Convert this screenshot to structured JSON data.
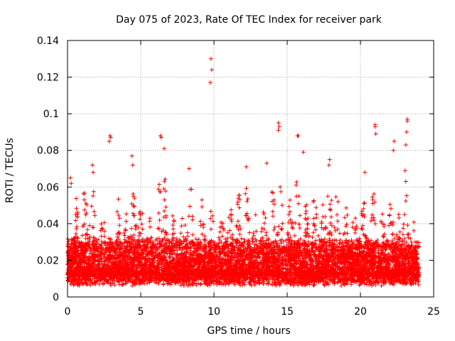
{
  "chart_data": {
    "type": "scatter",
    "title": "Day 075 of 2023, Rate Of TEC Index for receiver park",
    "xlabel": "GPS time / hours",
    "ylabel": "ROTI / TECUs",
    "xlim": [
      0,
      25
    ],
    "ylim": [
      0,
      0.14
    ],
    "x_ticks": [
      0,
      5,
      10,
      15,
      20,
      25
    ],
    "x_tick_labels": [
      "0",
      "5",
      "10",
      "15",
      "20",
      "25"
    ],
    "y_ticks": [
      0,
      0.02,
      0.04,
      0.06,
      0.08,
      0.1,
      0.12,
      0.14
    ],
    "y_tick_labels": [
      "0",
      "0.02",
      "0.04",
      "0.06",
      "0.08",
      "0.1",
      "0.12",
      "0.14"
    ],
    "grid": true,
    "marker": "+",
    "marker_color": "#ff0000",
    "series": [
      {
        "name": "ROTI",
        "x_range": [
          0,
          24
        ],
        "typical_band": [
          0.008,
          0.03
        ],
        "outliers": [
          {
            "x": 0.2,
            "y": 0.065
          },
          {
            "x": 0.25,
            "y": 0.062
          },
          {
            "x": 1.7,
            "y": 0.072
          },
          {
            "x": 1.75,
            "y": 0.068
          },
          {
            "x": 2.9,
            "y": 0.088
          },
          {
            "x": 2.95,
            "y": 0.087
          },
          {
            "x": 2.85,
            "y": 0.085
          },
          {
            "x": 4.4,
            "y": 0.077
          },
          {
            "x": 4.45,
            "y": 0.072
          },
          {
            "x": 6.35,
            "y": 0.088
          },
          {
            "x": 6.4,
            "y": 0.087
          },
          {
            "x": 6.6,
            "y": 0.081
          },
          {
            "x": 8.3,
            "y": 0.07
          },
          {
            "x": 9.8,
            "y": 0.13
          },
          {
            "x": 9.85,
            "y": 0.124
          },
          {
            "x": 9.75,
            "y": 0.117
          },
          {
            "x": 12.2,
            "y": 0.071
          },
          {
            "x": 13.6,
            "y": 0.073
          },
          {
            "x": 14.4,
            "y": 0.095
          },
          {
            "x": 14.45,
            "y": 0.093
          },
          {
            "x": 14.4,
            "y": 0.091
          },
          {
            "x": 15.7,
            "y": 0.088
          },
          {
            "x": 15.75,
            "y": 0.088
          },
          {
            "x": 16.1,
            "y": 0.079
          },
          {
            "x": 17.9,
            "y": 0.075
          },
          {
            "x": 17.85,
            "y": 0.072
          },
          {
            "x": 20.3,
            "y": 0.068
          },
          {
            "x": 21.0,
            "y": 0.094
          },
          {
            "x": 21.0,
            "y": 0.093
          },
          {
            "x": 21.05,
            "y": 0.089
          },
          {
            "x": 22.3,
            "y": 0.085
          },
          {
            "x": 22.25,
            "y": 0.08
          },
          {
            "x": 23.2,
            "y": 0.097
          },
          {
            "x": 23.2,
            "y": 0.096
          },
          {
            "x": 23.15,
            "y": 0.09
          },
          {
            "x": 23.1,
            "y": 0.083
          },
          {
            "x": 23.05,
            "y": 0.069
          },
          {
            "x": 23.1,
            "y": 0.063
          }
        ],
        "activity_peaks": [
          {
            "x": 0.6,
            "y": 0.054
          },
          {
            "x": 1.2,
            "y": 0.062
          },
          {
            "x": 1.7,
            "y": 0.066
          },
          {
            "x": 2.4,
            "y": 0.049
          },
          {
            "x": 3.4,
            "y": 0.058
          },
          {
            "x": 4.0,
            "y": 0.047
          },
          {
            "x": 4.5,
            "y": 0.066
          },
          {
            "x": 5.0,
            "y": 0.055
          },
          {
            "x": 5.6,
            "y": 0.046
          },
          {
            "x": 6.3,
            "y": 0.066
          },
          {
            "x": 6.6,
            "y": 0.07
          },
          {
            "x": 7.2,
            "y": 0.047
          },
          {
            "x": 7.9,
            "y": 0.05
          },
          {
            "x": 8.4,
            "y": 0.064
          },
          {
            "x": 9.2,
            "y": 0.054
          },
          {
            "x": 9.9,
            "y": 0.056
          },
          {
            "x": 10.5,
            "y": 0.058
          },
          {
            "x": 11.1,
            "y": 0.052
          },
          {
            "x": 11.7,
            "y": 0.058
          },
          {
            "x": 12.2,
            "y": 0.066
          },
          {
            "x": 12.8,
            "y": 0.047
          },
          {
            "x": 13.4,
            "y": 0.052
          },
          {
            "x": 14.0,
            "y": 0.061
          },
          {
            "x": 14.5,
            "y": 0.069
          },
          {
            "x": 15.2,
            "y": 0.06
          },
          {
            "x": 15.7,
            "y": 0.075
          },
          {
            "x": 16.3,
            "y": 0.054
          },
          {
            "x": 16.9,
            "y": 0.062
          },
          {
            "x": 17.5,
            "y": 0.055
          },
          {
            "x": 17.9,
            "y": 0.07
          },
          {
            "x": 18.4,
            "y": 0.062
          },
          {
            "x": 19.0,
            "y": 0.054
          },
          {
            "x": 19.6,
            "y": 0.05
          },
          {
            "x": 20.2,
            "y": 0.058
          },
          {
            "x": 20.9,
            "y": 0.064
          },
          {
            "x": 21.5,
            "y": 0.047
          },
          {
            "x": 22.1,
            "y": 0.058
          },
          {
            "x": 22.6,
            "y": 0.047
          },
          {
            "x": 23.1,
            "y": 0.061
          },
          {
            "x": 23.6,
            "y": 0.047
          }
        ]
      }
    ]
  }
}
